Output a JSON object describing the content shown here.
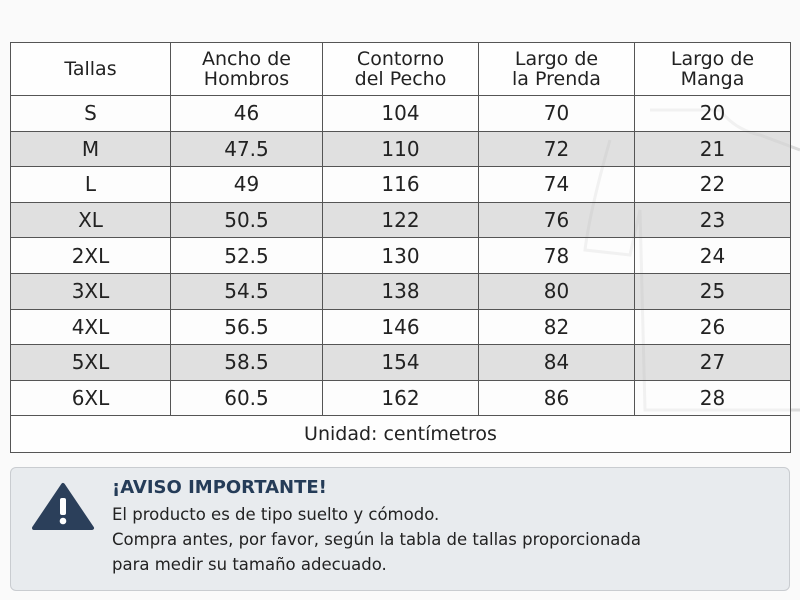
{
  "table": {
    "headers": [
      [
        "Tallas"
      ],
      [
        "Ancho de",
        "Hombros"
      ],
      [
        "Contorno",
        "del Pecho"
      ],
      [
        "Largo de",
        "la Prenda"
      ],
      [
        "Largo de",
        "Manga"
      ]
    ],
    "rows": [
      [
        "S",
        46,
        104,
        70,
        20
      ],
      [
        "M",
        47.5,
        110,
        72,
        21
      ],
      [
        "L",
        49,
        116,
        74,
        22
      ],
      [
        "XL",
        50.5,
        122,
        76,
        23
      ],
      [
        "2XL",
        52.5,
        130,
        78,
        24
      ],
      [
        "3XL",
        54.5,
        138,
        80,
        25
      ],
      [
        "4XL",
        56.5,
        146,
        82,
        26
      ],
      [
        "5XL",
        58.5,
        154,
        84,
        27
      ],
      [
        "6XL",
        60.5,
        162,
        86,
        28
      ]
    ],
    "footer": "Unidad: centímetros"
  },
  "notice": {
    "title": "¡AVISO IMPORTANTE!",
    "lines": [
      "El producto es de tipo suelto y cómodo.",
      "Compra antes, por favor, según la tabla de tallas proporcionada",
      "para medir su tamaño adecuado."
    ]
  }
}
